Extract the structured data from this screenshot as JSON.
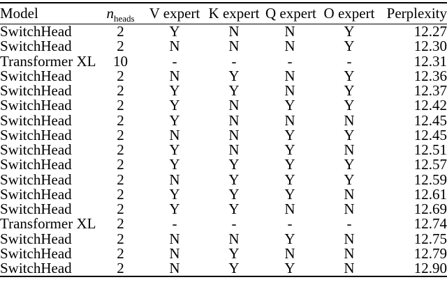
{
  "table": {
    "header": {
      "model": "Model",
      "n_heads_base": "n",
      "n_heads_sub": "heads",
      "v_expert": "V expert",
      "k_expert": "K expert",
      "q_expert": "Q expert",
      "o_expert": "O expert",
      "perplexity": "Perplexity"
    },
    "rows": [
      {
        "model": "SwitchHead",
        "n_heads": "2",
        "v": "Y",
        "k": "N",
        "q": "N",
        "o": "Y",
        "perplexity": "12.27"
      },
      {
        "model": "SwitchHead",
        "n_heads": "2",
        "v": "N",
        "k": "N",
        "q": "N",
        "o": "Y",
        "perplexity": "12.30"
      },
      {
        "model": "Transformer XL",
        "n_heads": "10",
        "v": "-",
        "k": "-",
        "q": "-",
        "o": "-",
        "perplexity": "12.31"
      },
      {
        "model": "SwitchHead",
        "n_heads": "2",
        "v": "N",
        "k": "Y",
        "q": "N",
        "o": "Y",
        "perplexity": "12.36"
      },
      {
        "model": "SwitchHead",
        "n_heads": "2",
        "v": "Y",
        "k": "Y",
        "q": "N",
        "o": "Y",
        "perplexity": "12.37"
      },
      {
        "model": "SwitchHead",
        "n_heads": "2",
        "v": "Y",
        "k": "N",
        "q": "Y",
        "o": "Y",
        "perplexity": "12.42"
      },
      {
        "model": "SwitchHead",
        "n_heads": "2",
        "v": "Y",
        "k": "N",
        "q": "N",
        "o": "N",
        "perplexity": "12.45"
      },
      {
        "model": "SwitchHead",
        "n_heads": "2",
        "v": "N",
        "k": "N",
        "q": "Y",
        "o": "Y",
        "perplexity": "12.45"
      },
      {
        "model": "SwitchHead",
        "n_heads": "2",
        "v": "Y",
        "k": "N",
        "q": "Y",
        "o": "N",
        "perplexity": "12.51"
      },
      {
        "model": "SwitchHead",
        "n_heads": "2",
        "v": "Y",
        "k": "Y",
        "q": "Y",
        "o": "Y",
        "perplexity": "12.57"
      },
      {
        "model": "SwitchHead",
        "n_heads": "2",
        "v": "N",
        "k": "Y",
        "q": "Y",
        "o": "Y",
        "perplexity": "12.59"
      },
      {
        "model": "SwitchHead",
        "n_heads": "2",
        "v": "Y",
        "k": "Y",
        "q": "Y",
        "o": "N",
        "perplexity": "12.61"
      },
      {
        "model": "SwitchHead",
        "n_heads": "2",
        "v": "Y",
        "k": "Y",
        "q": "N",
        "o": "N",
        "perplexity": "12.69"
      },
      {
        "model": "Transformer XL",
        "n_heads": "2",
        "v": "-",
        "k": "-",
        "q": "-",
        "o": "-",
        "perplexity": "12.74"
      },
      {
        "model": "SwitchHead",
        "n_heads": "2",
        "v": "N",
        "k": "N",
        "q": "Y",
        "o": "N",
        "perplexity": "12.75"
      },
      {
        "model": "SwitchHead",
        "n_heads": "2",
        "v": "N",
        "k": "Y",
        "q": "N",
        "o": "N",
        "perplexity": "12.79"
      },
      {
        "model": "SwitchHead",
        "n_heads": "2",
        "v": "N",
        "k": "Y",
        "q": "Y",
        "o": "N",
        "perplexity": "12.90"
      }
    ]
  }
}
